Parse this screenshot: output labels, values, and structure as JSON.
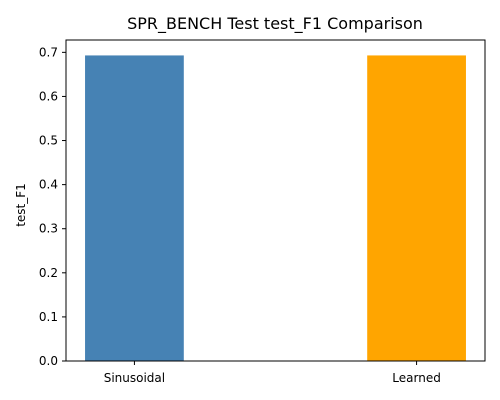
{
  "chart_data": {
    "type": "bar",
    "title": "SPR_BENCH Test test_F1 Comparison",
    "xlabel": "",
    "ylabel": "test_F1",
    "categories": [
      "Sinusoidal",
      "Learned"
    ],
    "values": [
      0.693,
      0.693
    ],
    "colors": [
      "#4682b4",
      "#ffa500"
    ],
    "ylim": [
      0,
      0.728
    ],
    "yticks": [
      0.0,
      0.1,
      0.2,
      0.3,
      0.4,
      0.5,
      0.6,
      0.7
    ],
    "ytick_labels": [
      "0.0",
      "0.1",
      "0.2",
      "0.3",
      "0.4",
      "0.5",
      "0.6",
      "0.7"
    ],
    "grid": false,
    "legend": "none"
  }
}
